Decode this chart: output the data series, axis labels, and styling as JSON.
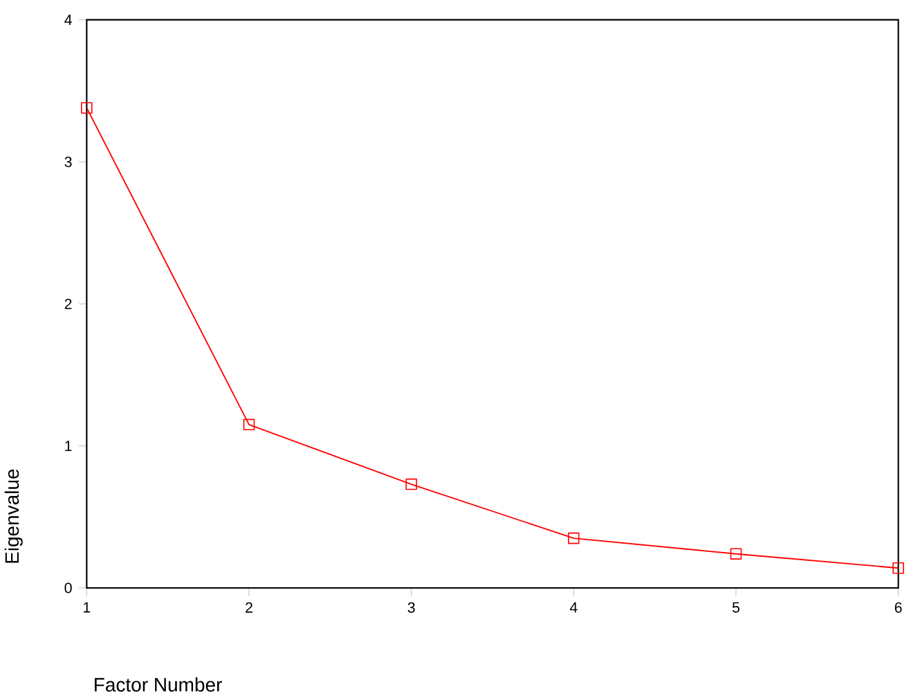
{
  "chart_data": {
    "type": "line",
    "xlabel": "Factor Number",
    "ylabel": "Eigenvalue",
    "x": [
      1,
      2,
      3,
      4,
      5,
      6
    ],
    "series": [
      {
        "color": "#ff0000",
        "values": [
          3.38,
          1.15,
          0.73,
          0.35,
          0.24,
          0.14
        ]
      }
    ],
    "xlim": [
      1,
      6
    ],
    "ylim": [
      0,
      4
    ],
    "xticks": [
      1,
      2,
      3,
      4,
      5,
      6
    ],
    "yticks": [
      0,
      1,
      2,
      3,
      4
    ],
    "marker": "square",
    "line_style": "solid",
    "grid": false
  }
}
